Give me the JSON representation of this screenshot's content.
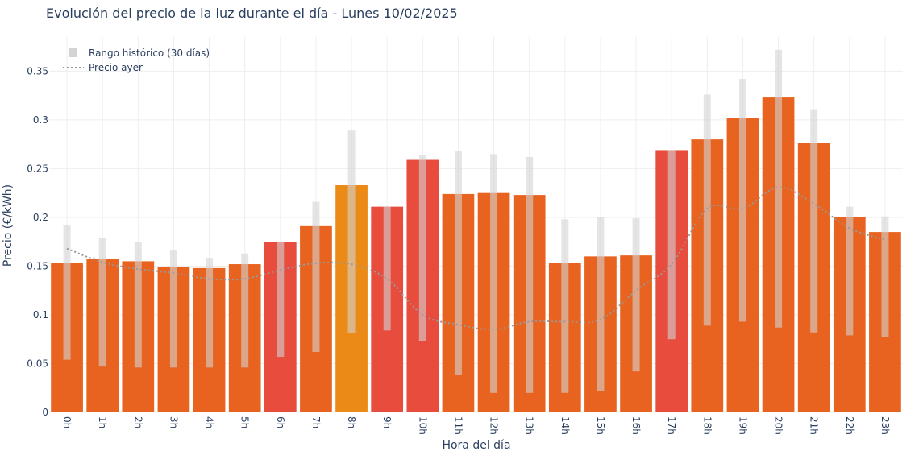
{
  "chart_data": {
    "type": "bar",
    "title": "Evolución del precio de la luz durante el día - Lunes 10/02/2025",
    "xlabel": "Hora del día",
    "ylabel": "Precio (€/kWh)",
    "categories": [
      "0h",
      "1h",
      "2h",
      "3h",
      "4h",
      "5h",
      "6h",
      "7h",
      "8h",
      "9h",
      "10h",
      "11h",
      "12h",
      "13h",
      "14h",
      "15h",
      "16h",
      "17h",
      "18h",
      "19h",
      "20h",
      "21h",
      "22h",
      "23h"
    ],
    "ylim": [
      0,
      0.39
    ],
    "yticks": [
      0,
      0.05,
      0.1,
      0.15,
      0.2,
      0.25,
      0.3,
      0.35
    ],
    "ytick_labels": [
      "0",
      "0.05",
      "0.1",
      "0.15",
      "0.2",
      "0.25",
      "0.3",
      "0.35"
    ],
    "grid": true,
    "legend_position": "top-left",
    "series": [
      {
        "kind": "bar",
        "values": [
          0.153,
          0.157,
          0.155,
          0.149,
          0.148,
          0.152,
          0.175,
          0.191,
          0.233,
          0.211,
          0.259,
          0.224,
          0.225,
          0.223,
          0.153,
          0.16,
          0.161,
          0.269,
          0.28,
          0.302,
          0.323,
          0.276,
          0.2,
          0.185
        ],
        "colors": [
          "#e8631f",
          "#e8631f",
          "#e8631f",
          "#e8631f",
          "#e8631f",
          "#e8631f",
          "#e74c3c",
          "#e8631f",
          "#eb8a17",
          "#e74c3c",
          "#e74c3c",
          "#e8631f",
          "#e8631f",
          "#e8631f",
          "#e8631f",
          "#e8631f",
          "#e8631f",
          "#e74c3c",
          "#e8631f",
          "#e8631f",
          "#e8631f",
          "#e8631f",
          "#e8631f",
          "#e8631f"
        ]
      },
      {
        "name": "Rango histórico (30 días)",
        "kind": "range",
        "low": [
          0.054,
          0.047,
          0.046,
          0.046,
          0.046,
          0.046,
          0.057,
          0.062,
          0.081,
          0.084,
          0.073,
          0.038,
          0.02,
          0.02,
          0.02,
          0.022,
          0.042,
          0.075,
          0.089,
          0.093,
          0.087,
          0.082,
          0.079,
          0.077
        ],
        "high": [
          0.192,
          0.179,
          0.175,
          0.166,
          0.158,
          0.163,
          0.175,
          0.216,
          0.289,
          0.211,
          0.264,
          0.268,
          0.265,
          0.262,
          0.198,
          0.2,
          0.199,
          0.269,
          0.326,
          0.342,
          0.372,
          0.311,
          0.211,
          0.201
        ],
        "color": "#d3d3d3"
      },
      {
        "name": "Precio ayer",
        "kind": "line",
        "values": [
          0.168,
          0.154,
          0.147,
          0.143,
          0.137,
          0.137,
          0.146,
          0.153,
          0.152,
          0.137,
          0.1,
          0.09,
          0.085,
          0.093,
          0.093,
          0.095,
          0.125,
          0.152,
          0.209,
          0.209,
          0.231,
          0.214,
          0.189,
          0.177
        ],
        "color": "#999999",
        "style": "dotted"
      }
    ]
  }
}
